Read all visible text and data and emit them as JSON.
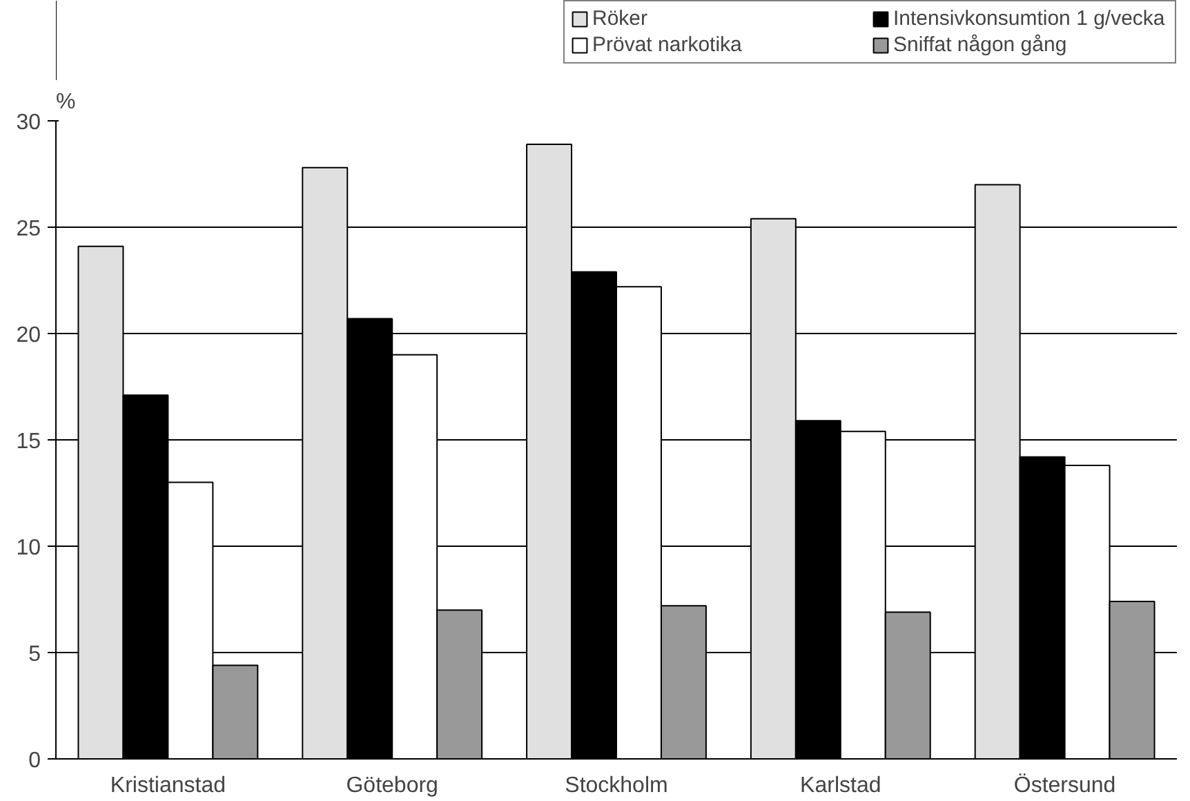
{
  "chart_data": {
    "type": "bar",
    "ylabel": "%",
    "categories": [
      "Kristianstad",
      "Göteborg",
      "Stockholm",
      "Karlstad",
      "Östersund"
    ],
    "series": [
      {
        "name": "Röker",
        "color": "#e0e0e0",
        "values": [
          24.1,
          27.8,
          28.9,
          25.4,
          27.0
        ]
      },
      {
        "name": "Intensivkonsumtion 1 g/vecka",
        "color": "#000000",
        "values": [
          17.1,
          20.7,
          22.9,
          15.9,
          14.2
        ]
      },
      {
        "name": "Prövat narkotika",
        "color": "#ffffff",
        "values": [
          13.0,
          19.0,
          22.2,
          15.4,
          13.8
        ]
      },
      {
        "name": "Sniffat någon gång",
        "color": "#999999",
        "values": [
          4.4,
          7.0,
          7.2,
          6.9,
          7.4
        ]
      }
    ],
    "ylim": [
      0,
      30
    ],
    "yticks": [
      0,
      5,
      10,
      15,
      20,
      25,
      30
    ],
    "grid": "y",
    "legend": "top right"
  }
}
